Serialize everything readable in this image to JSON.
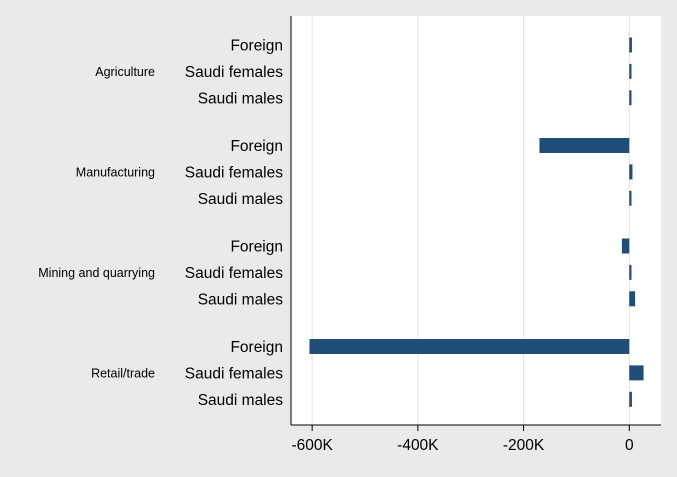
{
  "chart_data": {
    "type": "bar",
    "orientation": "horizontal",
    "groups": [
      {
        "name": "Agriculture",
        "categories": [
          "Foreign",
          "Saudi females",
          "Saudi males"
        ],
        "values": [
          5000,
          1500,
          1000
        ]
      },
      {
        "name": "Manufacturing",
        "categories": [
          "Foreign",
          "Saudi females",
          "Saudi males"
        ],
        "values": [
          -170000,
          6000,
          2000
        ]
      },
      {
        "name": "Mining and quarrying",
        "categories": [
          "Foreign",
          "Saudi females",
          "Saudi males"
        ],
        "values": [
          -14000,
          1000,
          11000
        ]
      },
      {
        "name": "Retail/trade",
        "categories": [
          "Foreign",
          "Saudi females",
          "Saudi males"
        ],
        "values": [
          -605000,
          27000,
          5000
        ]
      }
    ],
    "xlim": [
      -640000,
      60000
    ],
    "xticks": [
      -600000,
      -400000,
      -200000,
      0
    ],
    "xtick_labels": [
      "-600K",
      "-400K",
      "-200K",
      "0"
    ],
    "xlabel": "",
    "ylabel": "",
    "title": "",
    "grid": "vertical",
    "legend": "none",
    "colors": {
      "bar": "#1f4e79",
      "plot_bg": "#ffffff",
      "page_bg": "#eaeaea",
      "grid": "#e2e2e2",
      "axis": "#000000",
      "text": "#000000"
    }
  }
}
